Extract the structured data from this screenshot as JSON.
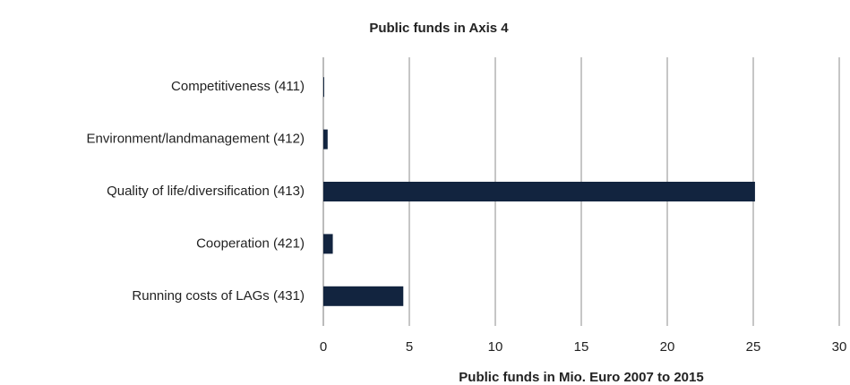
{
  "chart_data": {
    "type": "hbar",
    "title": "Public funds in Axis 4",
    "x_label": "Public funds in Mio. Euro 2007 to 2015",
    "categories": [
      "Competitiveness (411)",
      "Environment/landmanagement (412)",
      "Quality of life/diversification (413)",
      "Cooperation (421)",
      "Running costs of LAGs (431)"
    ],
    "values": [
      0.05,
      0.25,
      25.1,
      0.55,
      4.65
    ],
    "color": "#12243f",
    "xlim": [
      0,
      30
    ],
    "xticks": [
      0,
      5,
      10,
      15,
      20,
      25,
      30
    ],
    "grid": true
  }
}
